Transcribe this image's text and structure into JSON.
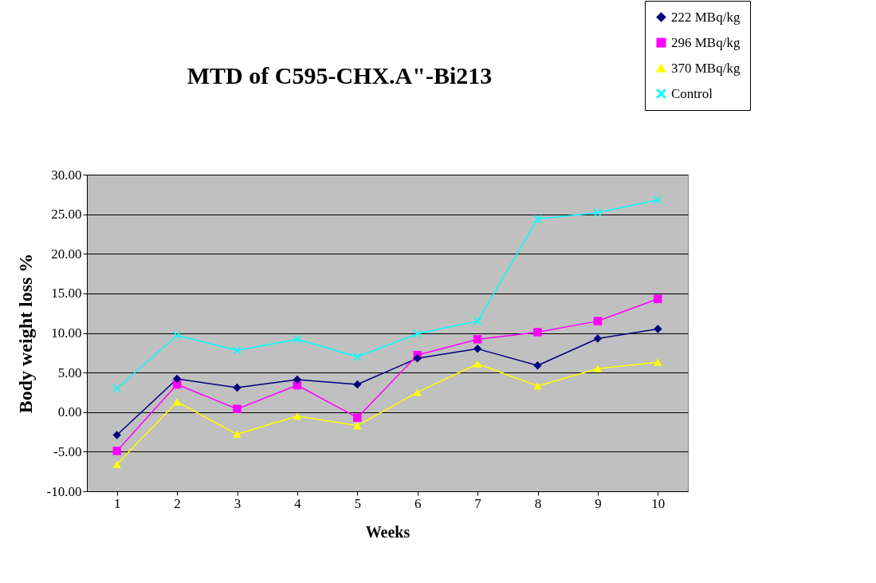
{
  "chart_data": {
    "type": "line",
    "title": "MTD of C595-CHX.A\"-Bi213",
    "xlabel": "Weeks",
    "ylabel": "Body weight loss %",
    "categories": [
      "1",
      "2",
      "3",
      "4",
      "5",
      "6",
      "7",
      "8",
      "9",
      "10"
    ],
    "series": [
      {
        "name": "222 MBq/kg",
        "color": "#000080",
        "marker": "diamond",
        "values": [
          -2.9,
          4.2,
          3.1,
          4.1,
          3.5,
          6.8,
          8.0,
          5.9,
          9.3,
          10.5
        ]
      },
      {
        "name": "296 MBq/kg",
        "color": "#ff00ff",
        "marker": "square",
        "values": [
          -4.9,
          3.5,
          0.4,
          3.4,
          -0.7,
          7.2,
          9.2,
          10.1,
          11.5,
          14.3
        ]
      },
      {
        "name": "370 MBq/kg",
        "color": "#ffff00",
        "marker": "triangle",
        "values": [
          -6.6,
          1.3,
          -2.8,
          -0.5,
          -1.7,
          2.5,
          6.1,
          3.3,
          5.5,
          6.3
        ]
      },
      {
        "name": "Control",
        "color": "#00ffff",
        "marker": "cross",
        "values": [
          3.0,
          9.7,
          7.8,
          9.2,
          7.0,
          9.9,
          11.5,
          24.4,
          25.2,
          26.8
        ]
      }
    ],
    "ylim": [
      -10,
      30
    ],
    "yticks": [
      {
        "value": -10,
        "label": "-10.00"
      },
      {
        "value": -5,
        "label": "-5.00"
      },
      {
        "value": 0,
        "label": "0.00"
      },
      {
        "value": 5,
        "label": "5.00"
      },
      {
        "value": 10,
        "label": "10.00"
      },
      {
        "value": 15,
        "label": "15.00"
      },
      {
        "value": 20,
        "label": "20.00"
      },
      {
        "value": 25,
        "label": "25.00"
      },
      {
        "value": 30,
        "label": "30.00"
      }
    ],
    "grid": "y",
    "legend": "top right",
    "line_style": "solid"
  }
}
